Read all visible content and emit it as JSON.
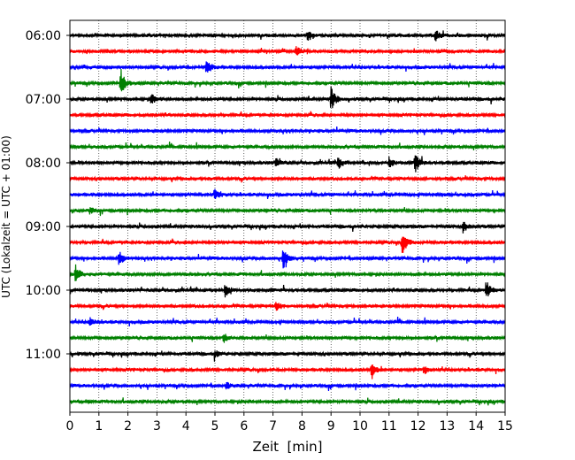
{
  "chart_data": {
    "type": "line",
    "subtype": "helicorder",
    "xlabel": "Zeit  [min]",
    "ylabel": "UTC (Lokalzeit = UTC + 01:00)",
    "xlim": [
      0,
      15
    ],
    "x_ticks": [
      0,
      1,
      2,
      3,
      4,
      5,
      6,
      7,
      8,
      9,
      10,
      11,
      12,
      13,
      14,
      15
    ],
    "x_tick_labels": [
      "0",
      "1",
      "2",
      "3",
      "4",
      "5",
      "6",
      "7",
      "8",
      "9",
      "10",
      "11",
      "12",
      "13",
      "14",
      "15"
    ],
    "y_tick_labels": [
      "06:00",
      "07:00",
      "08:00",
      "09:00",
      "10:00",
      "11:00"
    ],
    "vertical_grid": true,
    "grid_style": "dotted",
    "trace_colors": [
      "#000000",
      "#ff0000",
      "#0000ff",
      "#008000"
    ],
    "traces_start": "06:00",
    "minutes_per_trace": 15,
    "trace_count": 24,
    "events": [
      {
        "trace": 0,
        "minute": 8.2,
        "amplitude": 0.35
      },
      {
        "trace": 0,
        "minute": 12.6,
        "amplitude": 0.35
      },
      {
        "trace": 1,
        "minute": 7.8,
        "amplitude": 0.35
      },
      {
        "trace": 2,
        "minute": 4.7,
        "amplitude": 0.5
      },
      {
        "trace": 3,
        "minute": 1.75,
        "amplitude": 0.9
      },
      {
        "trace": 4,
        "minute": 2.8,
        "amplitude": 0.35
      },
      {
        "trace": 4,
        "minute": 9.0,
        "amplitude": 0.75
      },
      {
        "trace": 8,
        "minute": 7.1,
        "amplitude": 0.25
      },
      {
        "trace": 8,
        "minute": 9.25,
        "amplitude": 0.4
      },
      {
        "trace": 8,
        "minute": 11.0,
        "amplitude": 0.3
      },
      {
        "trace": 8,
        "minute": 11.9,
        "amplitude": 0.65
      },
      {
        "trace": 10,
        "minute": 5.0,
        "amplitude": 0.3
      },
      {
        "trace": 11,
        "minute": 0.7,
        "amplitude": 0.25
      },
      {
        "trace": 12,
        "minute": 13.55,
        "amplitude": 0.35
      },
      {
        "trace": 13,
        "minute": 11.45,
        "amplitude": 0.8
      },
      {
        "trace": 14,
        "minute": 1.7,
        "amplitude": 0.45
      },
      {
        "trace": 14,
        "minute": 7.35,
        "amplitude": 0.75
      },
      {
        "trace": 15,
        "minute": 0.2,
        "amplitude": 0.55
      },
      {
        "trace": 16,
        "minute": 5.35,
        "amplitude": 0.4
      },
      {
        "trace": 16,
        "minute": 14.35,
        "amplitude": 0.6
      },
      {
        "trace": 17,
        "minute": 7.1,
        "amplitude": 0.35
      },
      {
        "trace": 18,
        "minute": 0.7,
        "amplitude": 0.25
      },
      {
        "trace": 19,
        "minute": 5.3,
        "amplitude": 0.3
      },
      {
        "trace": 20,
        "minute": 5.0,
        "amplitude": 0.25
      },
      {
        "trace": 21,
        "minute": 10.4,
        "amplitude": 0.6
      },
      {
        "trace": 21,
        "minute": 12.2,
        "amplitude": 0.3
      },
      {
        "trace": 22,
        "minute": 5.4,
        "amplitude": 0.2
      }
    ]
  }
}
